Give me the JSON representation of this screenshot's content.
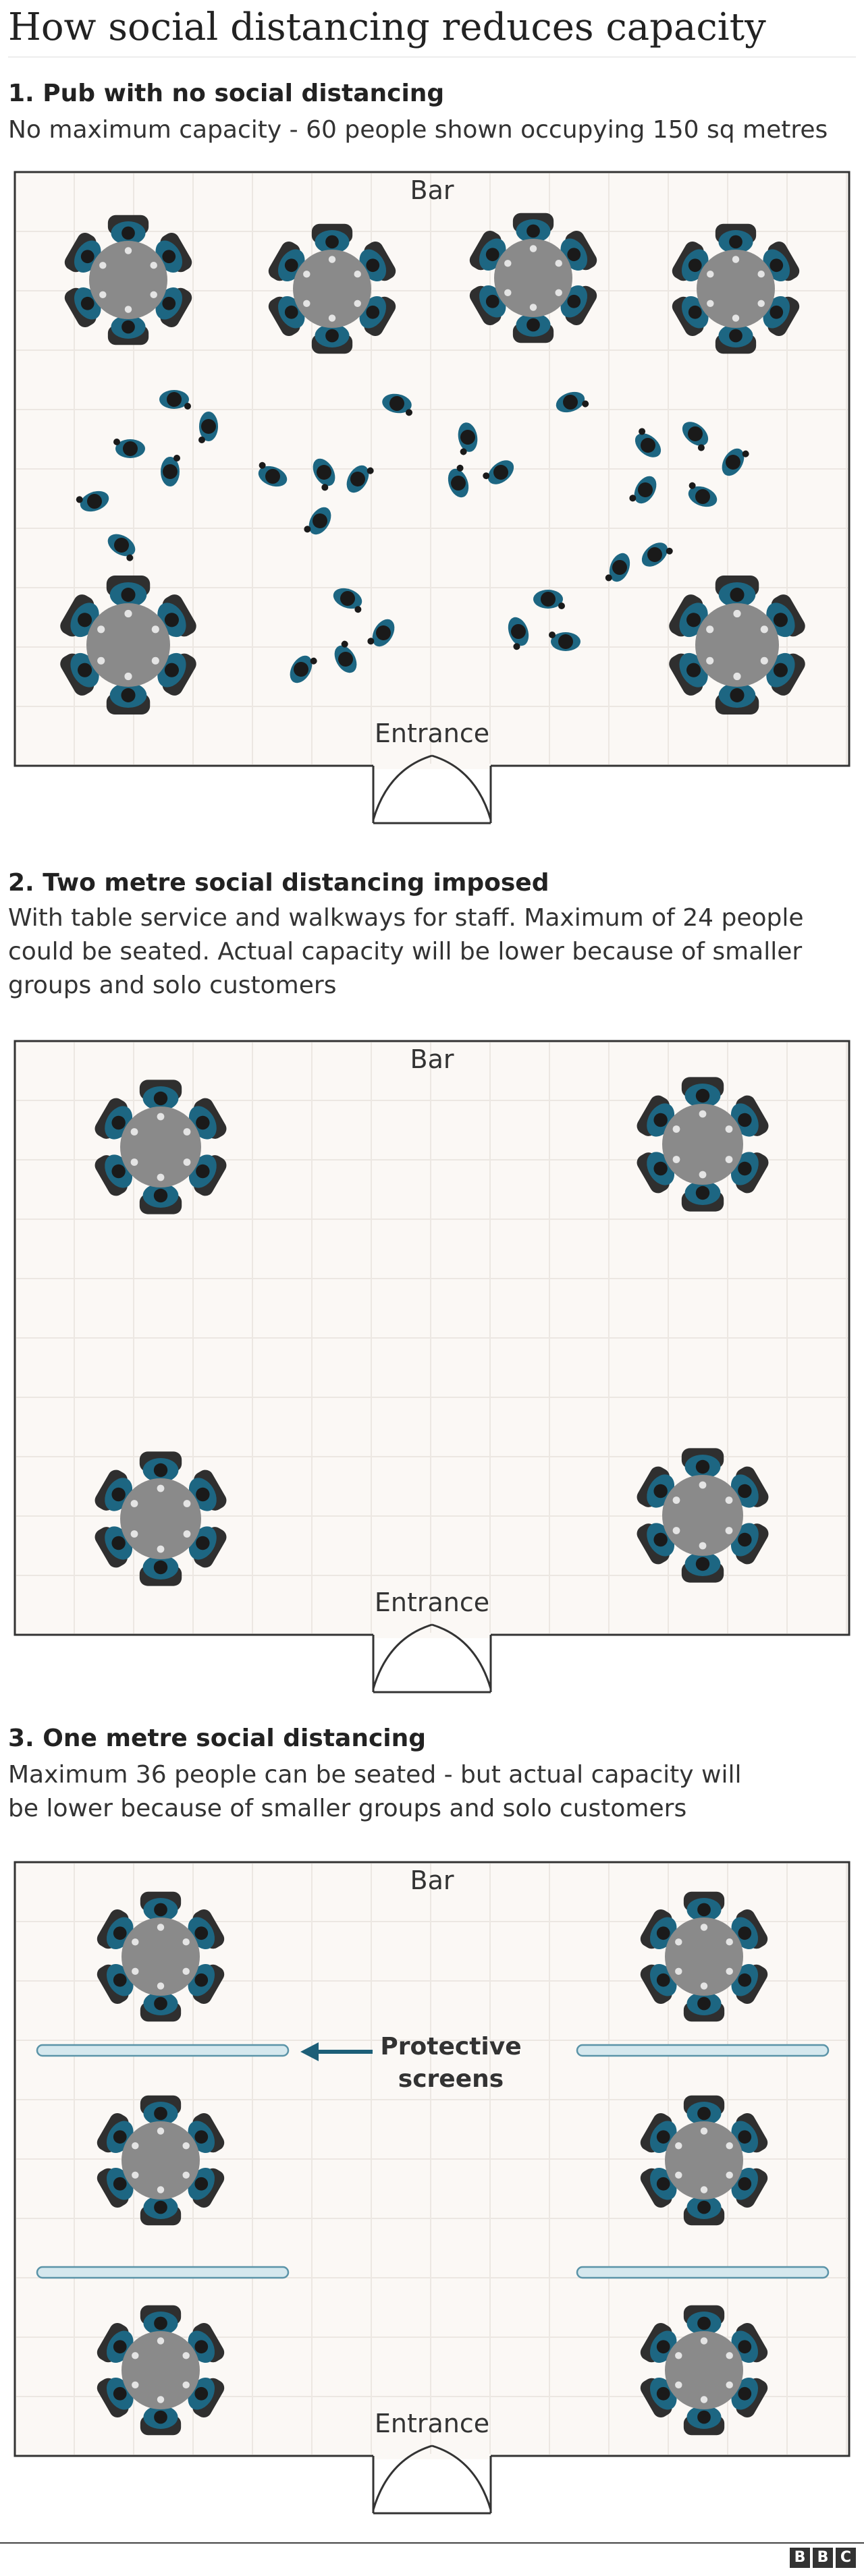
{
  "title": "How social distancing reduces capacity",
  "colors": {
    "background": "#ffffff",
    "floor": "#fbf8f5",
    "grid": "#ece7e2",
    "wall": "#333333",
    "table": "#8a8a8a",
    "chair": "#2f2f2f",
    "person_teal": "#1d6682",
    "person_dark": "#1a1a1a",
    "screen_fill": "#d5e8ee",
    "screen_stroke": "#5b94a8",
    "arrow": "#1d5f78"
  },
  "sections": [
    {
      "heading": "1. Pub with no social distancing",
      "description": "No maximum capacity - 60 people shown occupying 150 sq metres",
      "labels": {
        "top": "Bar",
        "bottom": "Entrance"
      },
      "icons": [
        "round-table-six-seat-icon",
        "standing-person-icon",
        "entrance-double-door-icon"
      ]
    },
    {
      "heading": "2. Two metre social distancing imposed",
      "description": "With table service and walkways for staff. Maximum of 24 people\ncould be seated. Actual capacity will be lower because of smaller\ngroups and solo customers",
      "labels": {
        "top": "Bar",
        "bottom": "Entrance"
      },
      "icons": [
        "round-table-six-seat-icon",
        "entrance-double-door-icon"
      ]
    },
    {
      "heading": "3. One metre social distancing",
      "description": "Maximum 36 people can be seated - but actual capacity will\nbe lower because of smaller groups and solo customers",
      "labels": {
        "top": "Bar",
        "bottom": "Entrance"
      },
      "callout": [
        "Protective",
        "screens"
      ],
      "icons": [
        "round-table-six-seat-icon",
        "protective-screen-icon",
        "arrow-left-icon",
        "entrance-double-door-icon"
      ]
    }
  ],
  "footer": {
    "logo": [
      "B",
      "B",
      "C"
    ]
  }
}
